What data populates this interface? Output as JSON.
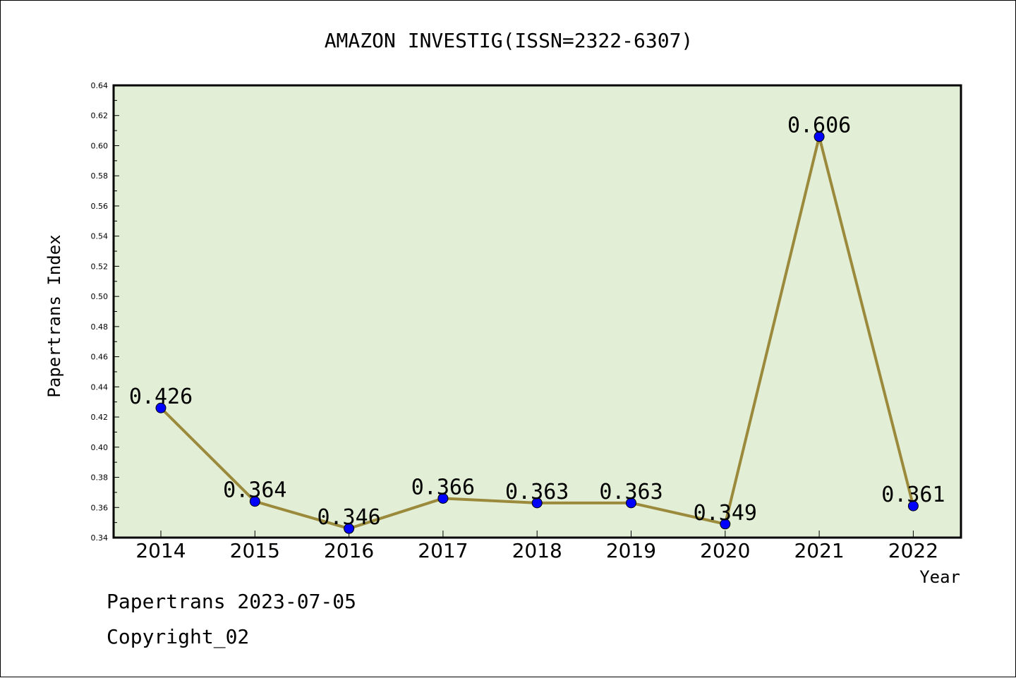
{
  "chart_data": {
    "type": "line",
    "title": "AMAZON INVESTIG(ISSN=2322-6307)",
    "xlabel": "Year",
    "ylabel": "Papertrans Index",
    "categories": [
      "2014",
      "2015",
      "2016",
      "2017",
      "2018",
      "2019",
      "2020",
      "2021",
      "2022"
    ],
    "series": [
      {
        "values": [
          0.426,
          0.364,
          0.346,
          0.366,
          0.363,
          0.363,
          0.349,
          0.606,
          0.361
        ]
      }
    ],
    "data_labels": [
      "0.426",
      "0.364",
      "0.346",
      "0.366",
      "0.363",
      "0.363",
      "0.349",
      "0.606",
      "0.361"
    ],
    "ylim": [
      0.34,
      0.64
    ],
    "yticks": [
      "0.34",
      "0.36",
      "0.38",
      "0.40",
      "0.42",
      "0.44",
      "0.46",
      "0.48",
      "0.50",
      "0.52",
      "0.54",
      "0.56",
      "0.58",
      "0.60",
      "0.62",
      "0.64"
    ],
    "grid": false,
    "legend": "none",
    "colors": {
      "plot_background": "#e2efd6",
      "line": "#9b8a3b",
      "marker": "#0000ff"
    }
  },
  "footer": {
    "line1": "Papertrans 2023-07-05",
    "line2": "Copyright_02"
  }
}
